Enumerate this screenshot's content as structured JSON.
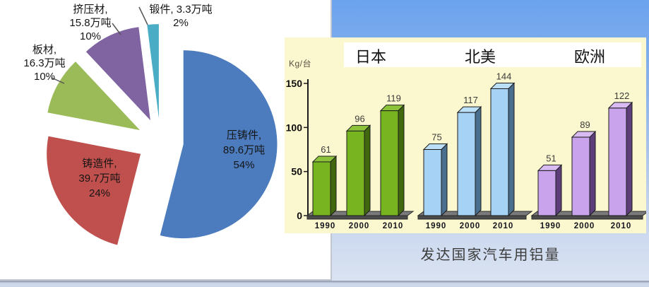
{
  "chart_data": [
    {
      "type": "pie",
      "unit": "万吨",
      "start_angle_deg": 0,
      "direction": "clockwise",
      "exploded": true,
      "slices": [
        {
          "label": "压铸件",
          "tonnage_wan_ton": 89.6,
          "percent": 54,
          "color": "#4c7cbe",
          "lines": [
            "压铸件,",
            "89.6万吨",
            "54%"
          ]
        },
        {
          "label": "铸造件",
          "tonnage_wan_ton": 39.7,
          "percent": 24,
          "color": "#c0504d",
          "lines": [
            "铸造件,",
            "39.7万吨",
            "24%"
          ]
        },
        {
          "label": "板材",
          "tonnage_wan_ton": 16.3,
          "percent": 10,
          "color": "#9bbb59",
          "lines": [
            "板材,",
            "16.3万吨",
            "10%"
          ]
        },
        {
          "label": "挤压材",
          "tonnage_wan_ton": 15.8,
          "percent": 10,
          "color": "#8064a2",
          "lines": [
            "挤压材,",
            "15.8万吨",
            "10%"
          ]
        },
        {
          "label": "锻件",
          "tonnage_wan_ton": 3.3,
          "percent": 2,
          "color": "#4bacc6",
          "lines": [
            "锻件, 3.3万吨",
            "2%"
          ]
        }
      ]
    },
    {
      "type": "bar",
      "title": "发达国家汽车用铝量",
      "ylabel": "Kg/台",
      "ylim": [
        0,
        150
      ],
      "yticks": [
        0,
        50,
        100,
        150
      ],
      "grid": false,
      "legend_position": "top-band",
      "categories": [
        "1990",
        "2000",
        "2010"
      ],
      "series": [
        {
          "name": "日本",
          "color": "#77b41f",
          "color_top": "#8cc33b",
          "color_side": "#42680f",
          "values": [
            61,
            96,
            119
          ]
        },
        {
          "name": "北美",
          "color": "#a5d2f5",
          "color_top": "#bcdff8",
          "color_side": "#4a6e8e",
          "values": [
            75,
            117,
            144
          ]
        },
        {
          "name": "欧洲",
          "color": "#c9a3eb",
          "color_top": "#d8bbf3",
          "color_side": "#5e3d7b",
          "values": [
            51,
            89,
            122
          ]
        }
      ]
    }
  ]
}
